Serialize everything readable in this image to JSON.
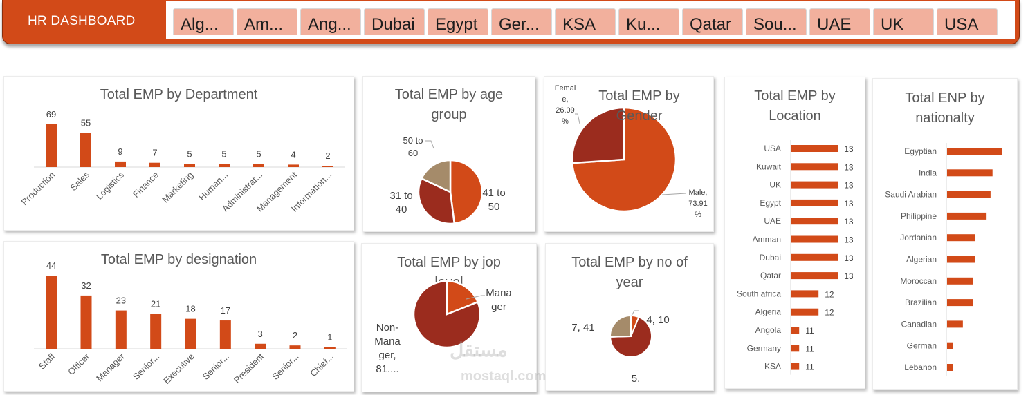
{
  "header": {
    "title": "HR DASHBOARD",
    "slicer_items": [
      "Alg...",
      "Am...",
      "Ang...",
      "Dubai",
      "Egypt",
      "Ger...",
      "KSA",
      "Ku...",
      "Qatar",
      "Sou...",
      "UAE",
      "UK",
      "USA"
    ]
  },
  "colors": {
    "accent": "#d24a18",
    "dark_red": "#9b2c1e",
    "tan": "#a58b6a",
    "slicer_bg": "#f2b09d"
  },
  "charts": {
    "department": {
      "title": "Total EMP by Department"
    },
    "designation": {
      "title": "Total EMP by designation"
    },
    "age": {
      "title_line1": "Total EMP by age",
      "title_line2": "group"
    },
    "gender": {
      "title_line1": "Total EMP by",
      "title_line2": "Gender"
    },
    "job_level": {
      "title_line1": "Total EMP by jop",
      "title_line2": "level"
    },
    "years": {
      "title_line1": "Total EMP by no of",
      "title_line2": "year"
    },
    "location": {
      "title_line1": "Total EMP by",
      "title_line2": "Location"
    },
    "nationality": {
      "title_line1": "Total ENP by",
      "title_line2": "nationalty"
    }
  },
  "watermark": {
    "line1": "مستقل",
    "line2": "mostaql.com"
  },
  "chart_data": [
    {
      "type": "bar",
      "title": "Total EMP by Department",
      "categories": [
        "Production",
        "Sales",
        "Logistics",
        "Finance",
        "Marketing",
        "Human...",
        "Administrat...",
        "Management",
        "Information..."
      ],
      "values": [
        69,
        55,
        9,
        7,
        5,
        5,
        5,
        4,
        2
      ],
      "xlabel": "",
      "ylabel": "",
      "grid": false,
      "data_labels": true
    },
    {
      "type": "bar",
      "title": "Total EMP by designation",
      "categories": [
        "Staff",
        "Officer",
        "Manager",
        "Senior...",
        "Executive",
        "Senior...",
        "President",
        "Senior...",
        "Chief..."
      ],
      "values": [
        44,
        32,
        23,
        21,
        18,
        17,
        3,
        2,
        1
      ],
      "xlabel": "",
      "ylabel": "",
      "grid": false,
      "data_labels": true
    },
    {
      "type": "pie",
      "title": "Total EMP by age group",
      "categories": [
        "41 to 50",
        "31 to 40",
        "50 to 60"
      ],
      "values": [
        48,
        34,
        18
      ],
      "labels": [
        "41 to\n50",
        "31 to\n40",
        "50 to\n60"
      ]
    },
    {
      "type": "pie",
      "title": "Total EMP by Gender",
      "categories": [
        "Male",
        "Female"
      ],
      "values": [
        73.91,
        26.09
      ],
      "labels": [
        "Male, 73.91 %",
        "Female, 26.09 %"
      ]
    },
    {
      "type": "pie",
      "title": "Total EMP by jop level",
      "categories": [
        "Manager",
        "Non-Manager"
      ],
      "values": [
        19,
        81
      ],
      "labels": [
        "Manager",
        "Non-Manager, 81...."
      ]
    },
    {
      "type": "pie",
      "title": "Total EMP by no of year",
      "categories": [
        "4",
        "5",
        "7"
      ],
      "values": [
        10,
        110,
        41
      ],
      "labels": [
        "4, 10",
        "5,",
        "7, 41"
      ]
    },
    {
      "type": "bar",
      "orientation": "horizontal",
      "title": "Total EMP by Location",
      "categories": [
        "USA",
        "Kuwait",
        "UK",
        "Egypt",
        "UAE",
        "Amman",
        "Dubai",
        "Qatar",
        "South africa",
        "Algeria",
        "Angola",
        "Germany",
        "KSA"
      ],
      "values": [
        13,
        13,
        13,
        13,
        13,
        13,
        13,
        13,
        12,
        12,
        11,
        11,
        11
      ],
      "data_labels": true
    },
    {
      "type": "bar",
      "orientation": "horizontal",
      "title": "Total ENP by nationalty",
      "categories": [
        "Egyptian",
        "India",
        "Saudi Arabian",
        "Philippine",
        "Jordanian",
        "Algerian",
        "Moroccan",
        "Brazilian",
        "Canadian",
        "German",
        "Lebanon"
      ],
      "values": [
        28,
        23,
        22,
        20,
        14,
        14,
        13,
        13,
        8,
        3,
        3
      ],
      "data_labels": false
    }
  ]
}
